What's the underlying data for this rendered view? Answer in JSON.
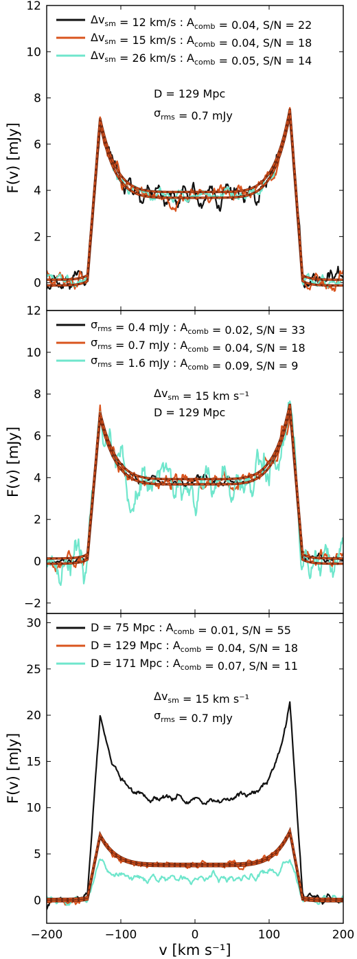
{
  "colors": {
    "black": "#111111",
    "orange": "#d9541e",
    "cyan": "#6fe6cc",
    "fit": "#b8401a"
  },
  "chart_data": [
    {
      "type": "line",
      "xlim": [
        -200,
        200
      ],
      "ylim": [
        -1.2,
        12
      ],
      "yticks": [
        0,
        2,
        4,
        6,
        8,
        10,
        12
      ],
      "xticks": [
        -200,
        -100,
        0,
        100,
        200
      ],
      "show_xtick_labels": false,
      "ylabel": "F(v) [mJy]",
      "legend_position": "top-left",
      "annotations": [
        "D = 129 Mpc",
        "σ_rms = 0.7 mJy"
      ],
      "series": [
        {
          "name": "Δv_sm = 12 km/s : A_comb = 0.04, S/N = 22",
          "color": "black",
          "amp": 1.0,
          "noise": 1.0,
          "seed": 11
        },
        {
          "name": "Δv_sm = 15 km/s : A_comb = 0.04, S/N = 18",
          "color": "orange",
          "amp": 1.0,
          "noise": 0.85,
          "seed": 23
        },
        {
          "name": "Δv_sm = 26 km/s : A_comb = 0.05, S/N = 14",
          "color": "cyan",
          "amp": 1.0,
          "noise": 0.55,
          "seed": 37
        }
      ],
      "profile_model": {
        "peak_left": 7.0,
        "peak_right": 7.4,
        "trough": 3.8,
        "edge_kms": 145
      }
    },
    {
      "type": "line",
      "xlim": [
        -200,
        200
      ],
      "ylim": [
        -2.5,
        12
      ],
      "yticks": [
        -2,
        0,
        2,
        4,
        6,
        8,
        10,
        12
      ],
      "xticks": [
        -200,
        -100,
        0,
        100,
        200
      ],
      "show_xtick_labels": false,
      "ylabel": "F(v) [mJy]",
      "legend_position": "top-left",
      "annotations": [
        "Δv_sm = 15 km s⁻¹",
        "D = 129 Mpc"
      ],
      "series": [
        {
          "name": "σ_rms = 0.4 mJy : A_comb = 0.02, S/N = 33",
          "color": "black",
          "amp": 1.0,
          "noise": 0.45,
          "seed": 41
        },
        {
          "name": "σ_rms = 0.7 mJy : A_comb = 0.04, S/N = 18",
          "color": "orange",
          "amp": 1.0,
          "noise": 0.85,
          "seed": 53
        },
        {
          "name": "σ_rms = 1.6 mJy : A_comb = 0.09, S/N = 9",
          "color": "cyan",
          "amp": 1.0,
          "noise": 2.0,
          "seed": 67
        }
      ],
      "profile_model": {
        "peak_left": 7.0,
        "peak_right": 7.4,
        "trough": 3.8,
        "edge_kms": 145
      }
    },
    {
      "type": "line",
      "xlim": [
        -200,
        200
      ],
      "ylim": [
        -2.5,
        31
      ],
      "yticks": [
        0,
        5,
        10,
        15,
        20,
        25,
        30
      ],
      "xticks": [
        -200,
        -100,
        0,
        100,
        200
      ],
      "show_xtick_labels": true,
      "xlabel": "v [km s⁻¹]",
      "ylabel": "F(v) [mJy]",
      "legend_position": "top-left",
      "annotations": [
        "Δv_sm = 15 km s⁻¹",
        "σ_rms = 0.7 mJy"
      ],
      "series": [
        {
          "name": "D = 75 Mpc : A_comb = 0.01, S/N = 55",
          "color": "black",
          "amp": 2.9,
          "noise": 0.9,
          "seed": 71
        },
        {
          "name": "D = 129 Mpc : A_comb = 0.04, S/N = 18",
          "color": "orange",
          "amp": 1.0,
          "noise": 0.85,
          "seed": 83
        },
        {
          "name": "D = 171 Mpc : A_comb = 0.07, S/N = 11",
          "color": "cyan",
          "amp": 0.62,
          "noise": 1.0,
          "seed": 97
        }
      ],
      "profile_model": {
        "peak_left": 7.0,
        "peak_right": 7.4,
        "trough": 3.8,
        "edge_kms": 145
      }
    }
  ]
}
